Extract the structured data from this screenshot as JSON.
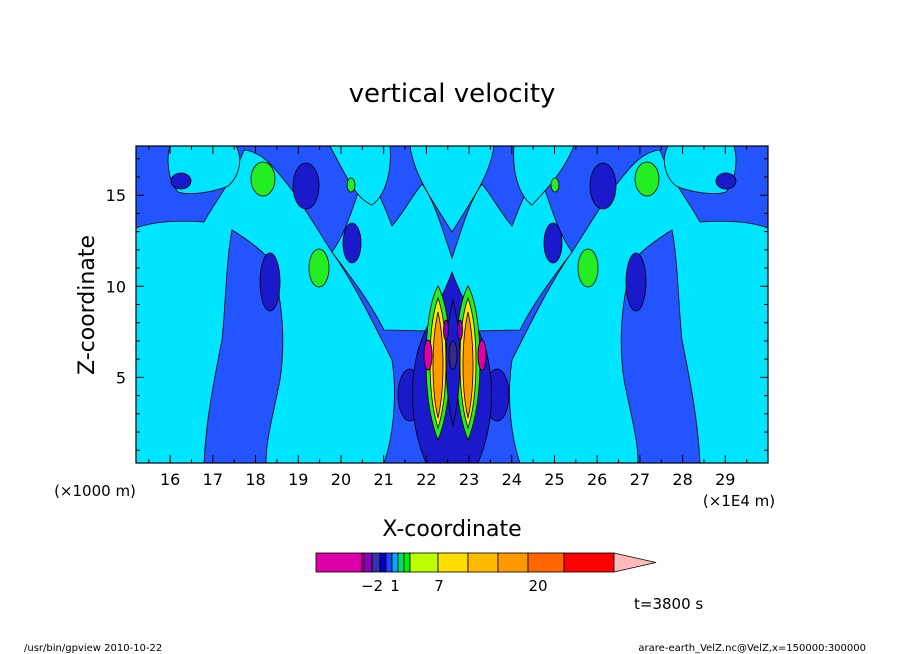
{
  "chart_data": {
    "type": "heatmap",
    "title": "vertical velocity",
    "xlabel": "X-coordinate",
    "ylabel": "Z-coordinate",
    "x_scale_note": "(×1E4 m)",
    "x_range": [
      15.2,
      30.0
    ],
    "y_range": [
      0.3,
      17.7
    ],
    "x_ticks": [
      16,
      17,
      18,
      19,
      20,
      21,
      22,
      23,
      24,
      25,
      26,
      27,
      28,
      29
    ],
    "y_ticks": [
      5,
      10,
      15
    ],
    "y_unit_label": "(×1000 m)",
    "grid": false,
    "colorbar": {
      "ticks": [
        "−2",
        "1",
        "7",
        "20"
      ],
      "colors": [
        "#dd00aa",
        "#dd00aa",
        "#8800bb",
        "#3333aa",
        "#0000cc",
        "#2244ff",
        "#00aaff",
        "#00dd66",
        "#00ee00",
        "#bbff00",
        "#ffdd00",
        "#ffbb00",
        "#ff9900",
        "#ff6600",
        "#ff0000",
        "#ff7777",
        "#ffbbbb"
      ],
      "note": "colors: magenta (negative) → blues → cyan/green → yellow/orange → red/pink (positive)"
    },
    "features": [
      {
        "name": "updraft core",
        "x": 22.15,
        "z": 6.2,
        "level": "orange"
      },
      {
        "name": "updraft core",
        "x": 22.85,
        "z": 6.2,
        "level": "orange"
      },
      {
        "name": "downdraft core",
        "x": 22.5,
        "z": 6.0,
        "level": "magenta"
      },
      {
        "name": "green cell",
        "x": 18.05,
        "z": 16.0,
        "level": "green"
      },
      {
        "name": "green cell",
        "x": 26.95,
        "z": 16.0,
        "level": "green"
      },
      {
        "name": "green cell",
        "x": 19.35,
        "z": 11.2,
        "level": "green"
      },
      {
        "name": "green cell",
        "x": 25.65,
        "z": 11.2,
        "level": "green"
      }
    ]
  },
  "annotations": {
    "time": "t=3800 s",
    "footer_left": "/usr/bin/gpview   2010-10-22",
    "footer_right": "arare-earth_VelZ.nc@VelZ,x=150000:300000"
  }
}
